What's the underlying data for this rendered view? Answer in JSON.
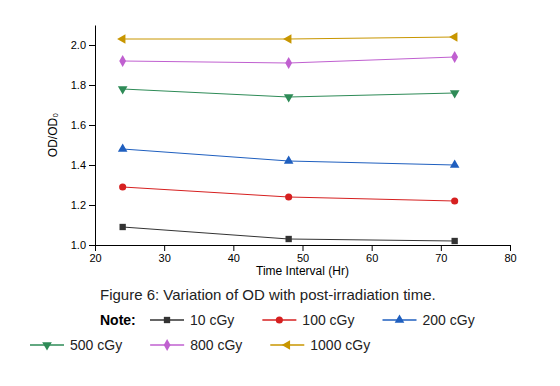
{
  "chart_data": {
    "type": "line",
    "title": "Figure 6: Variation of OD with post-irradiation time.",
    "legend_title": "Note:",
    "x_label": "Time Interval (Hr)",
    "y_label": "OD/OD₀",
    "x": [
      24,
      48,
      72
    ],
    "xlim": [
      20,
      80
    ],
    "xticks": [
      20,
      30,
      40,
      50,
      60,
      70,
      80
    ],
    "ylim": [
      1.0,
      2.1
    ],
    "yticks": [
      {
        "value": 1,
        "label": "1.0"
      },
      1.2,
      1.4,
      1.6,
      1.8,
      {
        "value": 2,
        "label": "2.0"
      }
    ],
    "grid": false,
    "series": [
      {
        "name": "10 cGy",
        "color": "#333333",
        "marker": "square",
        "values": [
          1.09,
          1.03,
          1.02
        ]
      },
      {
        "name": "100 cGy",
        "color": "#d62020",
        "marker": "circle",
        "values": [
          1.29,
          1.24,
          1.22
        ]
      },
      {
        "name": "200 cGy",
        "color": "#1f5fbf",
        "marker": "triangle-up",
        "values": [
          1.48,
          1.42,
          1.4
        ]
      },
      {
        "name": "500 cGy",
        "color": "#2e8b57",
        "marker": "triangle-down",
        "values": [
          1.78,
          1.74,
          1.76
        ]
      },
      {
        "name": "800 cGy",
        "color": "#c060d0",
        "marker": "diamond",
        "values": [
          1.92,
          1.91,
          1.94
        ]
      },
      {
        "name": "1000 cGy",
        "color": "#c89600",
        "marker": "triangle-left",
        "values": [
          2.03,
          2.03,
          2.04
        ]
      }
    ]
  }
}
